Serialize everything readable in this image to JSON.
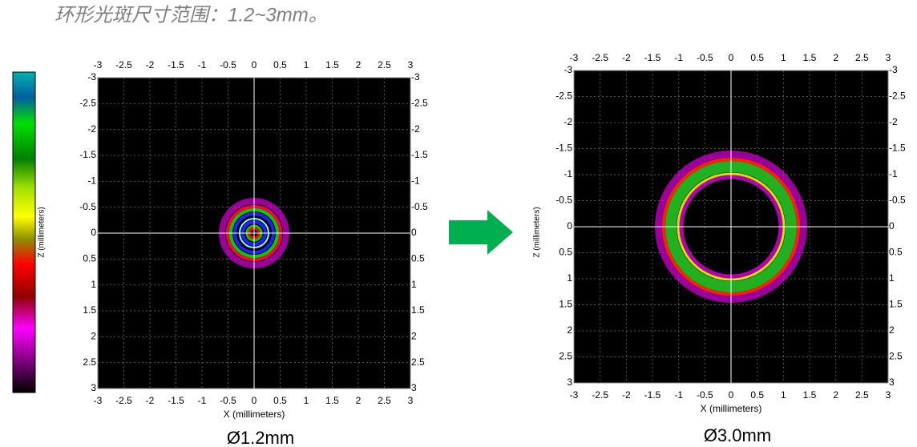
{
  "title": "环形光斑尺寸范围：1.2~3mm。",
  "panels": [
    {
      "x_ticks": [
        "-3",
        "-2.5",
        "-2",
        "-1.5",
        "-1",
        "-0.5",
        "0",
        "0.5",
        "1",
        "1.5",
        "2",
        "2.5",
        "3"
      ],
      "z_ticks": [
        "-3",
        "-2.5",
        "-2",
        "-1.5",
        "-1",
        "-0.5",
        "0",
        "0.5",
        "1",
        "1.5",
        "2",
        "2.5",
        "3"
      ],
      "x_label": "X (millimeters)",
      "z_label": "Z (millimeters)",
      "caption": "Ø1.2mm"
    },
    {
      "x_ticks": [
        "-3",
        "-2.5",
        "-2",
        "-1.5",
        "-1",
        "-0.5",
        "0",
        "0.5",
        "1",
        "1.5",
        "2",
        "2.5",
        "3"
      ],
      "z_ticks": [
        "-3",
        "-2.5",
        "-2",
        "-1.5",
        "-1",
        "-0.5",
        "0",
        "0.5",
        "1",
        "1.5",
        "2",
        "2.5",
        "3"
      ],
      "x_label": "X (millimeters)",
      "z_label": "Z (millimeters)",
      "caption": "Ø3.0mm"
    }
  ]
}
